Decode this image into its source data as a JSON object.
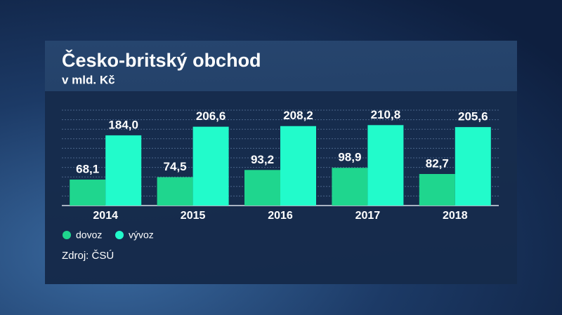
{
  "chart_data": {
    "type": "bar",
    "title": "Česko-britský obchod",
    "subtitle": "v mld. Kč",
    "source": "Zdroj: ČSÚ",
    "categories": [
      "2014",
      "2015",
      "2016",
      "2017",
      "2018"
    ],
    "series": [
      {
        "name": "dovoz",
        "color": "#1fd68e",
        "values": [
          68.1,
          74.5,
          93.2,
          98.9,
          82.7
        ],
        "value_labels": [
          "68,1",
          "74,5",
          "93,2",
          "98,9",
          "82,7"
        ]
      },
      {
        "name": "vývoz",
        "color": "#22fbcb",
        "values": [
          184.0,
          206.6,
          208.2,
          210.8,
          205.6
        ],
        "value_labels": [
          "184,0",
          "206,6",
          "208,2",
          "210,8",
          "205,6"
        ]
      }
    ],
    "ylim": [
      0,
      250
    ],
    "yticks": [
      0,
      25,
      50,
      75,
      100,
      125,
      150,
      175,
      200,
      225,
      250
    ],
    "grid": true
  }
}
